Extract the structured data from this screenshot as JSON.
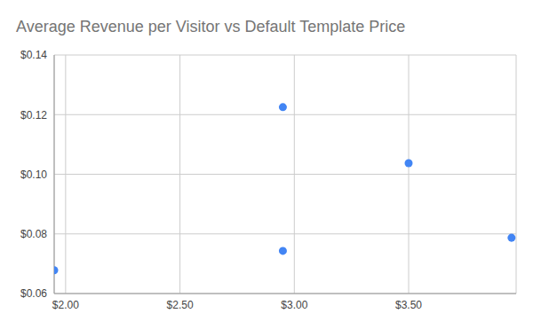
{
  "chart_data": {
    "type": "scatter",
    "title": "Average Revenue per Visitor vs Default Template Price",
    "x": [
      1.95,
      2.95,
      2.95,
      3.5,
      3.95
    ],
    "values": [
      0.0678,
      0.1225,
      0.0743,
      0.1037,
      0.0787
    ],
    "color": "#4285f4",
    "marker": "circle",
    "xlim": [
      1.95,
      3.97
    ],
    "xticks": [
      {
        "value": 2,
        "label": "$2.00"
      },
      {
        "value": 2.5,
        "label": "$2.50"
      },
      {
        "value": 3,
        "label": "$3.00"
      },
      {
        "value": 3.5,
        "label": "$3.50"
      }
    ],
    "ylim": [
      0.06,
      0.14
    ],
    "yticks": [
      {
        "value": 0.06,
        "label": "$0.06"
      },
      {
        "value": 0.08,
        "label": "$0.08"
      },
      {
        "value": 0.1,
        "label": "$0.10"
      },
      {
        "value": 0.12,
        "label": "$0.12"
      },
      {
        "value": 0.14,
        "label": "$0.14"
      }
    ],
    "grid": true
  }
}
